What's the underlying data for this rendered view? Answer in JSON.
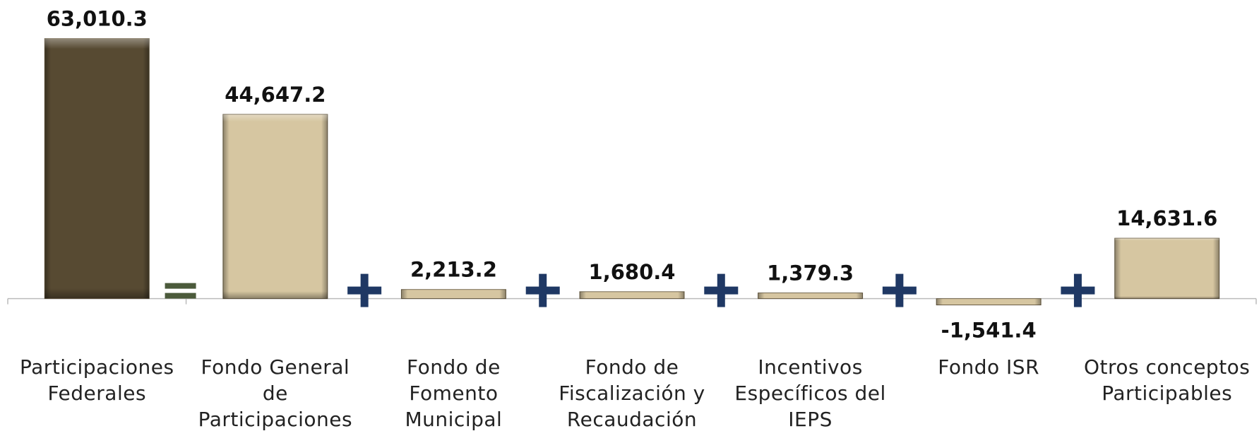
{
  "chart_data": {
    "type": "bar",
    "categories": [
      [
        "Participaciones",
        "Federales"
      ],
      [
        "Fondo General",
        "de",
        "Participaciones"
      ],
      [
        "Fondo de",
        "Fomento",
        "Municipal"
      ],
      [
        "Fondo de",
        "Fiscalización y",
        "Recaudación"
      ],
      [
        "Incentivos",
        "Específicos del",
        "IEPS"
      ],
      [
        "Fondo ISR"
      ],
      [
        "Otros conceptos",
        "Participables"
      ]
    ],
    "values": [
      63010.3,
      44647.2,
      2213.2,
      1680.4,
      1379.3,
      -1541.4,
      14631.6
    ],
    "value_labels": [
      "63,010.3",
      "44,647.2",
      "2,213.2",
      "1,680.4",
      "1,379.3",
      "-1,541.4",
      "14,631.6"
    ],
    "colors": [
      "#574a32",
      "#d6c6a1",
      "#d6c6a1",
      "#d6c6a1",
      "#d6c6a1",
      "#d6c6a1",
      "#d6c6a1"
    ],
    "ylim": [
      -10000,
      65000
    ]
  }
}
